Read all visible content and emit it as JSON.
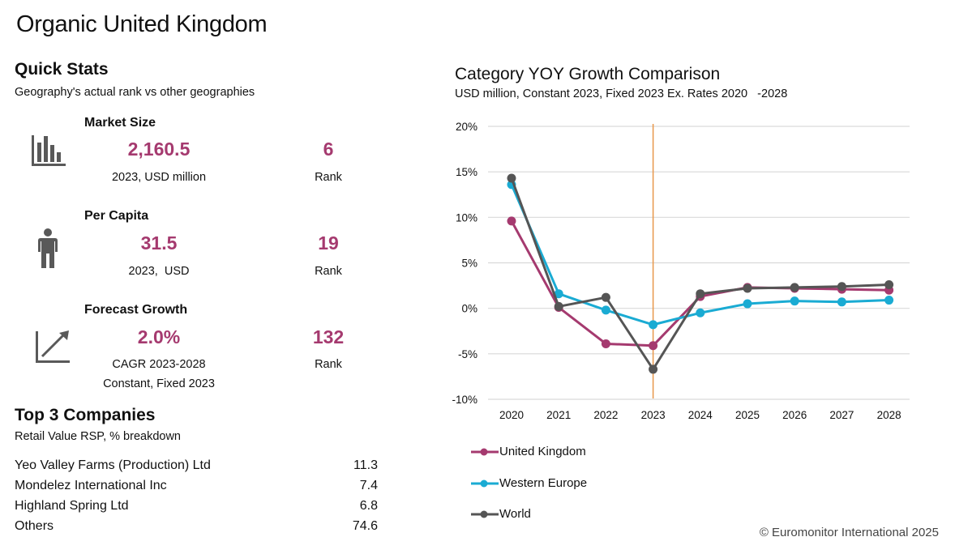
{
  "page": {
    "title": "Organic United Kingdom",
    "copyright": "© Euromonitor International 2025"
  },
  "quick_stats": {
    "heading": "Quick Stats",
    "subheading": "Geography's actual rank vs other geographies",
    "items": [
      {
        "icon": "bar-chart-icon",
        "label": "Market Size",
        "value": "2,160.5",
        "caption": "2023, USD million",
        "caption2": "",
        "rank": "6",
        "rank_label": "Rank"
      },
      {
        "icon": "person-icon",
        "label": "Per Capita",
        "value": "31.5",
        "caption": "2023,  USD",
        "caption2": "",
        "rank": "19",
        "rank_label": "Rank"
      },
      {
        "icon": "growth-arrow-icon",
        "label": "Forecast Growth",
        "value": "2.0%",
        "caption": "CAGR 2023-2028",
        "caption2": "Constant, Fixed 2023",
        "rank": "132",
        "rank_label": "Rank"
      }
    ]
  },
  "companies": {
    "heading": "Top 3 Companies",
    "subheading": "Retail Value RSP, % breakdown",
    "rows": [
      {
        "name": "Yeo Valley Farms (Production) Ltd",
        "value": "11.3"
      },
      {
        "name": "Mondelez International Inc",
        "value": "7.4"
      },
      {
        "name": "Highland Spring Ltd",
        "value": "6.8"
      },
      {
        "name": "Others",
        "value": "74.6"
      }
    ]
  },
  "colors": {
    "accent": "#a53a6f",
    "uk": "#a53a6f",
    "western_europe": "#1aabd3",
    "world": "#555555",
    "marker_line": "#e8974a",
    "grid": "#d9d9d9"
  },
  "chart_data": {
    "type": "line",
    "title": "Category YOY Growth Comparison",
    "subtitle": "USD million, Constant 2023, Fixed 2023 Ex. Rates 2020   -2028",
    "xlabel": "",
    "ylabel": "",
    "categories": [
      "2020",
      "2021",
      "2022",
      "2023",
      "2024",
      "2025",
      "2026",
      "2027",
      "2028"
    ],
    "ylim": [
      -10,
      20
    ],
    "yticks": [
      -10,
      -5,
      0,
      5,
      10,
      15,
      20
    ],
    "ytick_labels": [
      "-10%",
      "-5%",
      "0%",
      "5%",
      "10%",
      "15%",
      "20%"
    ],
    "grid": true,
    "reference_line": {
      "x": "2023"
    },
    "legend_position": "bottom-left",
    "series": [
      {
        "name": "United Kingdom",
        "color_key": "uk",
        "values": [
          9.6,
          0.1,
          -3.9,
          -4.1,
          1.3,
          2.3,
          2.2,
          2.1,
          2.0
        ]
      },
      {
        "name": "Western Europe",
        "color_key": "western_europe",
        "values": [
          13.6,
          1.6,
          -0.2,
          -1.8,
          -0.5,
          0.5,
          0.8,
          0.7,
          0.9
        ]
      },
      {
        "name": "World",
        "color_key": "world",
        "values": [
          14.3,
          0.2,
          1.2,
          -6.7,
          1.6,
          2.2,
          2.3,
          2.4,
          2.6
        ]
      }
    ]
  }
}
